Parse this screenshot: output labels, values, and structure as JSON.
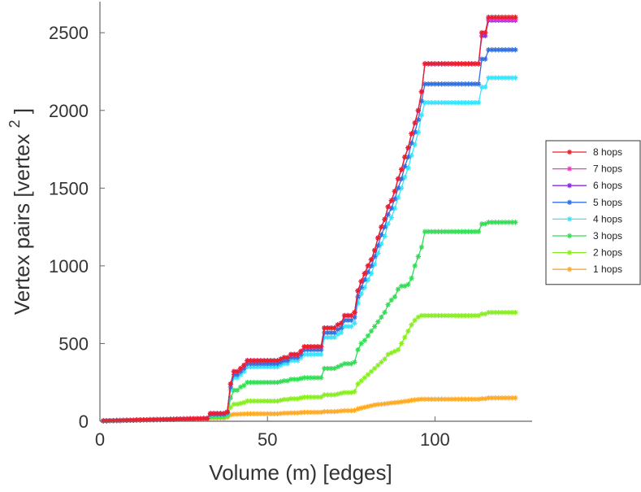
{
  "chart_data": {
    "type": "line",
    "title": "",
    "xlabel": "Volume (m) [edges]",
    "ylabel": "Vertex pairs [vertex",
    "ylabel_superscript": "2",
    "ylabel_close": "]",
    "xlim": [
      0,
      129
    ],
    "ylim": [
      0,
      2700
    ],
    "xticks": [
      0,
      50,
      100
    ],
    "yticks": [
      0,
      500,
      1000,
      1500,
      2000,
      2500
    ],
    "legend_position": "right",
    "marker": "asterisk",
    "x": [
      1,
      2,
      3,
      4,
      5,
      6,
      7,
      8,
      9,
      10,
      11,
      12,
      13,
      14,
      15,
      16,
      17,
      18,
      19,
      20,
      21,
      22,
      23,
      24,
      25,
      26,
      27,
      28,
      29,
      30,
      31,
      32,
      33,
      34,
      35,
      36,
      37,
      38,
      39,
      40,
      41,
      42,
      43,
      44,
      45,
      46,
      47,
      48,
      49,
      50,
      51,
      52,
      53,
      54,
      55,
      56,
      57,
      58,
      59,
      60,
      61,
      62,
      63,
      64,
      65,
      66,
      67,
      68,
      69,
      70,
      71,
      72,
      73,
      74,
      75,
      76,
      77,
      78,
      79,
      80,
      81,
      82,
      83,
      84,
      85,
      86,
      87,
      88,
      89,
      90,
      91,
      92,
      93,
      94,
      95,
      96,
      97,
      98,
      99,
      100,
      101,
      102,
      103,
      104,
      105,
      106,
      107,
      108,
      109,
      110,
      111,
      112,
      113,
      114,
      115,
      116,
      117,
      118,
      119,
      120,
      121,
      122,
      123,
      124
    ],
    "series": [
      {
        "name": "8 hops",
        "color": "#e8202a",
        "values": [
          3,
          3,
          4,
          4,
          5,
          5,
          6,
          6,
          7,
          7,
          8,
          8,
          9,
          9,
          10,
          10,
          11,
          11,
          12,
          12,
          13,
          13,
          14,
          14,
          15,
          15,
          16,
          16,
          17,
          17,
          18,
          18,
          50,
          50,
          50,
          50,
          50,
          60,
          240,
          320,
          320,
          340,
          360,
          390,
          390,
          390,
          390,
          390,
          390,
          390,
          390,
          390,
          390,
          400,
          410,
          410,
          430,
          430,
          430,
          450,
          480,
          480,
          480,
          480,
          480,
          480,
          600,
          600,
          600,
          600,
          620,
          630,
          680,
          680,
          680,
          700,
          840,
          900,
          950,
          1000,
          1040,
          1100,
          1180,
          1250,
          1300,
          1380,
          1420,
          1480,
          1560,
          1620,
          1700,
          1760,
          1850,
          1920,
          2000,
          2120,
          2300,
          2300,
          2300,
          2300,
          2300,
          2300,
          2300,
          2300,
          2300,
          2300,
          2300,
          2300,
          2300,
          2300,
          2300,
          2300,
          2300,
          2500,
          2500,
          2600,
          2600,
          2600,
          2600,
          2600,
          2600,
          2600,
          2600,
          2600
        ]
      },
      {
        "name": "7 hops",
        "color": "#ff33cc",
        "values": [
          3,
          3,
          4,
          4,
          5,
          5,
          6,
          6,
          7,
          7,
          8,
          8,
          9,
          9,
          10,
          10,
          11,
          11,
          12,
          12,
          13,
          13,
          14,
          14,
          15,
          15,
          16,
          16,
          17,
          17,
          18,
          18,
          50,
          50,
          50,
          50,
          50,
          60,
          240,
          320,
          320,
          340,
          360,
          390,
          390,
          390,
          390,
          390,
          390,
          390,
          390,
          390,
          390,
          400,
          410,
          410,
          430,
          430,
          430,
          450,
          480,
          480,
          480,
          480,
          480,
          480,
          600,
          600,
          600,
          600,
          620,
          630,
          680,
          680,
          680,
          700,
          840,
          900,
          950,
          1000,
          1040,
          1100,
          1180,
          1250,
          1300,
          1380,
          1420,
          1480,
          1560,
          1620,
          1700,
          1760,
          1850,
          1920,
          2000,
          2120,
          2300,
          2300,
          2300,
          2300,
          2300,
          2300,
          2300,
          2300,
          2300,
          2300,
          2300,
          2300,
          2300,
          2300,
          2300,
          2300,
          2300,
          2500,
          2500,
          2590,
          2590,
          2590,
          2590,
          2590,
          2590,
          2590,
          2590,
          2590
        ]
      },
      {
        "name": "6 hops",
        "color": "#8a2be2",
        "values": [
          3,
          3,
          4,
          4,
          5,
          5,
          6,
          6,
          7,
          7,
          8,
          8,
          9,
          9,
          10,
          10,
          11,
          11,
          12,
          12,
          13,
          13,
          14,
          14,
          15,
          15,
          16,
          16,
          17,
          17,
          18,
          18,
          50,
          50,
          50,
          50,
          50,
          60,
          240,
          320,
          320,
          340,
          360,
          390,
          390,
          390,
          390,
          390,
          390,
          390,
          390,
          390,
          390,
          400,
          410,
          410,
          430,
          430,
          430,
          450,
          480,
          480,
          480,
          480,
          480,
          480,
          600,
          600,
          600,
          600,
          620,
          630,
          680,
          680,
          680,
          700,
          840,
          900,
          950,
          1000,
          1040,
          1100,
          1180,
          1250,
          1300,
          1380,
          1420,
          1480,
          1560,
          1620,
          1700,
          1760,
          1850,
          1920,
          2000,
          2120,
          2300,
          2300,
          2300,
          2300,
          2300,
          2300,
          2300,
          2300,
          2300,
          2300,
          2300,
          2300,
          2300,
          2300,
          2300,
          2300,
          2300,
          2480,
          2480,
          2580,
          2580,
          2580,
          2580,
          2580,
          2580,
          2580,
          2580,
          2580
        ]
      },
      {
        "name": "5 hops",
        "color": "#2f6fe0",
        "values": [
          3,
          3,
          4,
          4,
          5,
          5,
          6,
          6,
          7,
          7,
          8,
          8,
          9,
          9,
          10,
          10,
          11,
          11,
          12,
          12,
          13,
          13,
          14,
          14,
          15,
          15,
          16,
          16,
          17,
          17,
          18,
          18,
          45,
          45,
          45,
          45,
          45,
          55,
          220,
          300,
          300,
          320,
          340,
          370,
          370,
          370,
          370,
          370,
          370,
          370,
          370,
          370,
          370,
          380,
          390,
          390,
          410,
          410,
          410,
          430,
          460,
          460,
          460,
          460,
          460,
          460,
          570,
          570,
          570,
          570,
          590,
          600,
          650,
          650,
          650,
          670,
          800,
          860,
          910,
          960,
          1000,
          1060,
          1130,
          1200,
          1250,
          1330,
          1370,
          1430,
          1500,
          1560,
          1640,
          1700,
          1790,
          1860,
          1940,
          2060,
          2170,
          2170,
          2170,
          2170,
          2170,
          2170,
          2170,
          2170,
          2170,
          2170,
          2170,
          2170,
          2170,
          2170,
          2170,
          2170,
          2170,
          2330,
          2330,
          2390,
          2390,
          2390,
          2390,
          2390,
          2390,
          2390,
          2390,
          2390
        ]
      },
      {
        "name": "4 hops",
        "color": "#33e6ff",
        "values": [
          3,
          3,
          4,
          4,
          5,
          5,
          6,
          6,
          7,
          7,
          8,
          8,
          9,
          9,
          10,
          10,
          11,
          11,
          12,
          12,
          13,
          13,
          14,
          14,
          15,
          15,
          16,
          16,
          17,
          17,
          18,
          18,
          40,
          40,
          40,
          40,
          40,
          50,
          200,
          280,
          280,
          300,
          320,
          350,
          350,
          350,
          350,
          350,
          350,
          350,
          350,
          350,
          350,
          360,
          370,
          370,
          390,
          390,
          390,
          410,
          430,
          430,
          430,
          430,
          430,
          430,
          540,
          540,
          540,
          540,
          560,
          570,
          610,
          610,
          610,
          630,
          760,
          820,
          860,
          910,
          950,
          1010,
          1080,
          1140,
          1190,
          1270,
          1310,
          1370,
          1440,
          1500,
          1570,
          1630,
          1710,
          1780,
          1860,
          1970,
          2050,
          2050,
          2050,
          2050,
          2050,
          2050,
          2050,
          2050,
          2050,
          2050,
          2050,
          2050,
          2050,
          2050,
          2050,
          2050,
          2050,
          2150,
          2150,
          2210,
          2210,
          2210,
          2210,
          2210,
          2210,
          2210,
          2210,
          2210
        ]
      },
      {
        "name": "3 hops",
        "color": "#33dd55",
        "values": [
          3,
          3,
          4,
          4,
          5,
          5,
          6,
          6,
          7,
          7,
          8,
          8,
          9,
          9,
          10,
          10,
          11,
          11,
          12,
          12,
          13,
          13,
          14,
          14,
          15,
          15,
          16,
          16,
          17,
          17,
          18,
          18,
          30,
          30,
          30,
          30,
          30,
          40,
          150,
          200,
          200,
          220,
          230,
          250,
          250,
          250,
          250,
          250,
          250,
          250,
          250,
          250,
          250,
          255,
          260,
          260,
          270,
          270,
          270,
          275,
          280,
          280,
          280,
          280,
          280,
          280,
          340,
          340,
          340,
          340,
          350,
          360,
          370,
          370,
          370,
          380,
          460,
          500,
          520,
          550,
          580,
          610,
          640,
          670,
          700,
          750,
          780,
          800,
          850,
          870,
          870,
          880,
          920,
          1000,
          1060,
          1120,
          1220,
          1220,
          1220,
          1220,
          1220,
          1220,
          1220,
          1220,
          1220,
          1220,
          1220,
          1220,
          1220,
          1220,
          1220,
          1220,
          1220,
          1270,
          1270,
          1280,
          1280,
          1280,
          1280,
          1280,
          1280,
          1280,
          1280,
          1280
        ]
      },
      {
        "name": "2 hops",
        "color": "#88ee22",
        "values": [
          3,
          3,
          4,
          4,
          5,
          5,
          6,
          6,
          7,
          7,
          8,
          8,
          9,
          9,
          10,
          10,
          11,
          11,
          12,
          12,
          13,
          13,
          14,
          14,
          15,
          15,
          16,
          16,
          17,
          17,
          18,
          18,
          25,
          25,
          25,
          25,
          25,
          30,
          90,
          110,
          110,
          115,
          120,
          130,
          130,
          130,
          130,
          130,
          130,
          130,
          130,
          130,
          130,
          135,
          140,
          140,
          145,
          145,
          145,
          150,
          155,
          155,
          155,
          155,
          155,
          155,
          170,
          170,
          170,
          170,
          175,
          180,
          185,
          185,
          185,
          190,
          240,
          260,
          280,
          300,
          320,
          340,
          360,
          380,
          400,
          430,
          440,
          450,
          460,
          500,
          540,
          580,
          620,
          650,
          670,
          680,
          680,
          680,
          680,
          680,
          680,
          680,
          680,
          680,
          680,
          680,
          680,
          680,
          680,
          680,
          680,
          680,
          680,
          690,
          690,
          700,
          700,
          700,
          700,
          700,
          700,
          700,
          700,
          700
        ]
      },
      {
        "name": "1 hops",
        "color": "#ffaa22",
        "values": [
          3,
          3,
          4,
          4,
          5,
          5,
          6,
          6,
          7,
          7,
          8,
          8,
          9,
          9,
          10,
          10,
          11,
          11,
          12,
          12,
          13,
          13,
          14,
          14,
          15,
          15,
          16,
          16,
          17,
          17,
          18,
          18,
          20,
          20,
          20,
          20,
          20,
          25,
          40,
          45,
          45,
          46,
          47,
          48,
          48,
          48,
          48,
          48,
          48,
          48,
          48,
          48,
          48,
          50,
          52,
          52,
          54,
          54,
          54,
          56,
          58,
          58,
          58,
          58,
          58,
          58,
          62,
          62,
          62,
          62,
          64,
          66,
          68,
          68,
          68,
          70,
          80,
          85,
          90,
          95,
          100,
          105,
          108,
          110,
          112,
          115,
          118,
          120,
          122,
          125,
          128,
          130,
          135,
          138,
          140,
          142,
          142,
          142,
          142,
          142,
          142,
          142,
          142,
          142,
          142,
          142,
          142,
          142,
          142,
          142,
          142,
          142,
          142,
          145,
          145,
          150,
          150,
          150,
          150,
          150,
          150,
          150,
          150,
          150
        ]
      }
    ]
  }
}
